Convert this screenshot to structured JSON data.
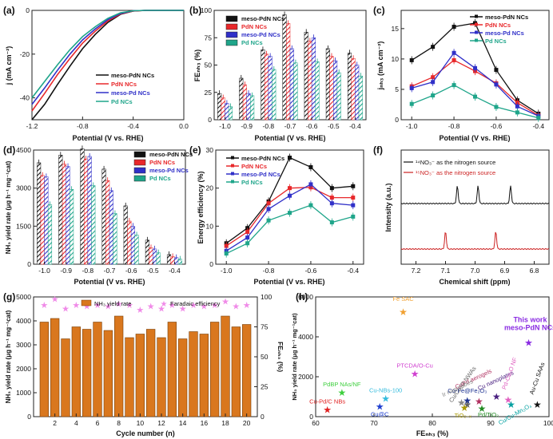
{
  "colors": {
    "meso_PdN": "#111111",
    "PdN": "#e8282b",
    "meso_Pd": "#3030c8",
    "Pd": "#1fa58a",
    "yield_bar": "#d9771e",
    "fe_star": "#f08ae8"
  },
  "chart_data": [
    {
      "panel": "(a)",
      "type": "line",
      "xlabel": "Potential (V vs. RHE)",
      "ylabel": "j (mA cm⁻²)",
      "xlim": [
        -1.2,
        0.0
      ],
      "ylim": [
        -50,
        0
      ],
      "xticks": [
        -1.2,
        -0.8,
        -0.4,
        0.0
      ],
      "xtick_labels": [
        "-1.2",
        "-0.8",
        "-0.4",
        "0.0"
      ],
      "yticks": [
        -40,
        -20,
        0
      ],
      "ytick_labels": [
        "-40",
        "-20",
        "0"
      ],
      "legend": "bottom-left",
      "series": [
        {
          "name": "meso-PdN NCs",
          "color": "#111111",
          "points": [
            [
              -1.2,
              -52
            ],
            [
              -1.1,
              -43
            ],
            [
              -1.0,
              -34
            ],
            [
              -0.9,
              -25.5
            ],
            [
              -0.8,
              -17.5
            ],
            [
              -0.7,
              -11
            ],
            [
              -0.6,
              -5.5
            ],
            [
              -0.5,
              -1.8
            ],
            [
              -0.4,
              -0.3
            ],
            [
              -0.3,
              0
            ],
            [
              0.0,
              0
            ]
          ]
        },
        {
          "name": "PdN NCs",
          "color": "#e8282b",
          "points": [
            [
              -1.2,
              -46
            ],
            [
              -1.1,
              -38
            ],
            [
              -1.0,
              -29.5
            ],
            [
              -0.9,
              -22
            ],
            [
              -0.8,
              -15
            ],
            [
              -0.7,
              -9.5
            ],
            [
              -0.6,
              -4.8
            ],
            [
              -0.5,
              -1.6
            ],
            [
              -0.4,
              -0.3
            ],
            [
              -0.3,
              0
            ],
            [
              0.0,
              0
            ]
          ]
        },
        {
          "name": "meso-Pd NCs",
          "color": "#3030c8",
          "points": [
            [
              -1.2,
              -43
            ],
            [
              -1.1,
              -35.5
            ],
            [
              -1.0,
              -27.5
            ],
            [
              -0.9,
              -20
            ],
            [
              -0.8,
              -13.5
            ],
            [
              -0.7,
              -8.5
            ],
            [
              -0.6,
              -4.2
            ],
            [
              -0.5,
              -1.4
            ],
            [
              -0.4,
              -0.2
            ],
            [
              -0.3,
              0
            ],
            [
              0.0,
              0
            ]
          ]
        },
        {
          "name": "Pd NCs",
          "color": "#1fa58a",
          "points": [
            [
              -1.2,
              -40
            ],
            [
              -1.1,
              -32.5
            ],
            [
              -1.0,
              -25
            ],
            [
              -0.9,
              -18
            ],
            [
              -0.8,
              -12
            ],
            [
              -0.7,
              -7.5
            ],
            [
              -0.6,
              -3.6
            ],
            [
              -0.5,
              -1.1
            ],
            [
              -0.4,
              -0.2
            ],
            [
              -0.3,
              0
            ],
            [
              0.0,
              0
            ]
          ]
        }
      ]
    },
    {
      "panel": "(b)",
      "type": "bar",
      "ylabel": "FEₙₕ₃ (%)",
      "xlabel": "Potential (V vs. RHE)",
      "categories": [
        "-1.0",
        "-0.9",
        "-0.8",
        "-0.7",
        "-0.6",
        "-0.5",
        "-0.4"
      ],
      "ylim": [
        0,
        100
      ],
      "yticks": [
        0,
        25,
        50,
        75,
        100
      ],
      "ytick_labels": [
        "0",
        "25",
        "50",
        "75",
        "100"
      ],
      "legend": "top-left",
      "series": [
        {
          "name": "meso-PdN NCs",
          "color": "#111111",
          "values": [
            24,
            38,
            64,
            96,
            80,
            65,
            61
          ]
        },
        {
          "name": "PdN NCs",
          "color": "#e8282b",
          "values": [
            20,
            32,
            60,
            88,
            72,
            58,
            56
          ]
        },
        {
          "name": "meso-Pd NCs",
          "color": "#3030c8",
          "values": [
            15,
            24,
            58,
            65,
            75,
            54,
            50
          ]
        },
        {
          "name": "Pd NCs",
          "color": "#1fa58a",
          "values": [
            12,
            22,
            46,
            52,
            53,
            43,
            40
          ]
        }
      ]
    },
    {
      "panel": "(c)",
      "type": "line",
      "ylabel": "jₙₕ₃ (mA cm⁻²)",
      "xlabel": "Potential (V vs. RHE)",
      "xlim": [
        -1.05,
        -0.35
      ],
      "ylim": [
        0,
        18
      ],
      "xticks": [
        -1.0,
        -0.8,
        -0.6,
        -0.4
      ],
      "xtick_labels": [
        "-1.0",
        "-0.8",
        "-0.6",
        "-0.4"
      ],
      "yticks": [
        0,
        5,
        10,
        15
      ],
      "ytick_labels": [
        "0",
        "5",
        "10",
        "15"
      ],
      "legend": "top-right",
      "x": [
        -1.0,
        -0.9,
        -0.8,
        -0.7,
        -0.6,
        -0.5,
        -0.4
      ],
      "series": [
        {
          "name": "meso-PdN NCs",
          "color": "#111111",
          "values": [
            9.8,
            12.0,
            15.3,
            15.9,
            8.2,
            3.2,
            1.0
          ]
        },
        {
          "name": "PdN NCs",
          "color": "#e8282b",
          "values": [
            5.5,
            7.0,
            9.8,
            8.0,
            6.0,
            2.8,
            0.7
          ]
        },
        {
          "name": "meso-Pd NCs",
          "color": "#3030c8",
          "values": [
            5.2,
            6.2,
            11.0,
            8.5,
            5.8,
            2.2,
            0.6
          ]
        },
        {
          "name": "Pd NCs",
          "color": "#1fa58a",
          "values": [
            2.6,
            4.0,
            5.7,
            3.8,
            2.1,
            1.2,
            0.3
          ]
        }
      ]
    },
    {
      "panel": "(d)",
      "type": "bar",
      "ylabel": "NH₃ yield rate (μg h⁻¹ mg⁻¹cat)",
      "xlabel": "Potential (V vs. RHE)",
      "categories": [
        "-1.0",
        "-0.9",
        "-0.8",
        "-0.7",
        "-0.6",
        "-0.5",
        "-0.4"
      ],
      "ylim": [
        0,
        4500
      ],
      "yticks": [
        0,
        1500,
        3000,
        4500
      ],
      "ytick_labels": [
        "0",
        "1500",
        "3000",
        "4500"
      ],
      "legend": "top-right",
      "series": [
        {
          "name": "meso-PdN NCs",
          "color": "#111111",
          "values": [
            4000,
            4300,
            4550,
            3750,
            2300,
            950,
            380
          ]
        },
        {
          "name": "PdN NCs",
          "color": "#e8282b",
          "values": [
            3500,
            3950,
            4150,
            3300,
            1700,
            650,
            300
          ]
        },
        {
          "name": "meso-Pd NCs",
          "color": "#3030c8",
          "values": [
            3450,
            3850,
            4250,
            2900,
            1500,
            600,
            260
          ]
        },
        {
          "name": "Pd NCs",
          "color": "#1fa58a",
          "values": [
            2350,
            2950,
            3100,
            2000,
            1150,
            450,
            200
          ]
        }
      ]
    },
    {
      "panel": "(e)",
      "type": "line",
      "ylabel": "Energy efficiency (%)",
      "xlabel": "Potential (V vs. RHE)",
      "xlim": [
        -1.05,
        -0.35
      ],
      "ylim": [
        0,
        30
      ],
      "xticks": [
        -1.0,
        -0.8,
        -0.6,
        -0.4
      ],
      "xtick_labels": [
        "-1.0",
        "-0.8",
        "-0.6",
        "-0.4"
      ],
      "yticks": [
        0,
        10,
        20,
        30
      ],
      "ytick_labels": [
        "0",
        "10",
        "20",
        "30"
      ],
      "legend": "top-left",
      "x": [
        -1.0,
        -0.9,
        -0.8,
        -0.7,
        -0.6,
        -0.5,
        -0.4
      ],
      "series": [
        {
          "name": "meso-PdN NCs",
          "color": "#111111",
          "values": [
            5.5,
            9.5,
            16.5,
            28.0,
            25.5,
            20.0,
            20.5
          ]
        },
        {
          "name": "PdN NCs",
          "color": "#e8282b",
          "values": [
            4.8,
            8.5,
            16.0,
            20.0,
            20.2,
            17.5,
            17.5
          ]
        },
        {
          "name": "meso-Pd NCs",
          "color": "#3030c8",
          "values": [
            3.5,
            7.0,
            14.5,
            18.0,
            21.0,
            16.0,
            15.5
          ]
        },
        {
          "name": "Pd NCs",
          "color": "#1fa58a",
          "values": [
            2.8,
            5.5,
            11.5,
            13.5,
            15.5,
            11.0,
            12.5
          ]
        }
      ]
    },
    {
      "panel": "(f)",
      "type": "line",
      "ylabel": "Intensity (a.u.)",
      "xlabel": "Chemical shift (ppm)",
      "xlim": [
        7.25,
        6.75
      ],
      "xreversed": true,
      "xticks": [
        7.2,
        7.1,
        7.0,
        6.9,
        6.8
      ],
      "xtick_labels": [
        "7.2",
        "7.1",
        "7.0",
        "6.9",
        "6.8"
      ],
      "series": [
        {
          "name": "¹⁴NO₃⁻ as the nitrogen source",
          "color": "#111111",
          "peaks": [
            7.06,
            6.99,
            6.88
          ]
        },
        {
          "name": "¹⁵NO₃⁻ as the nitrogen source",
          "color": "#cc2222",
          "peaks": [
            7.1,
            6.93
          ]
        }
      ]
    },
    {
      "panel": "(g)",
      "type": "bar",
      "ylabel": "NH₃ yield rate (μg h⁻¹ mg⁻¹cat)",
      "y2label": "FEₙₕ₃ (%)",
      "xlabel": "Cycle number (n)",
      "x": [
        1,
        2,
        3,
        4,
        5,
        6,
        7,
        8,
        9,
        10,
        11,
        12,
        13,
        14,
        15,
        16,
        17,
        18,
        19,
        20
      ],
      "xticks": [
        2,
        4,
        6,
        8,
        10,
        12,
        14,
        16,
        18,
        20
      ],
      "xtick_labels": [
        "2",
        "4",
        "6",
        "8",
        "10",
        "12",
        "14",
        "16",
        "18",
        "20"
      ],
      "ylim": [
        0,
        5000
      ],
      "yticks": [
        0,
        1000,
        2000,
        3000,
        4000,
        5000
      ],
      "ytick_labels": [
        "0",
        "1000",
        "2000",
        "3000",
        "4000",
        "5000"
      ],
      "y2lim": [
        0,
        100
      ],
      "y2ticks": [
        0,
        25,
        50,
        75,
        100
      ],
      "y2tick_labels": [
        "0",
        "25",
        "50",
        "75",
        "100"
      ],
      "legend": "top",
      "series": [
        {
          "name": "NH₃ yield rate",
          "color": "#d9771e",
          "values": [
            3950,
            4100,
            3250,
            3750,
            3650,
            3950,
            3600,
            4200,
            3300,
            3450,
            3650,
            3300,
            3950,
            3250,
            3550,
            3450,
            3950,
            4200,
            3750,
            3850
          ]
        },
        {
          "name": "Faradaic efficiency",
          "color": "#f08ae8",
          "values": [
            93,
            98,
            90,
            93,
            92,
            93,
            92,
            94,
            93,
            89,
            92,
            90,
            93,
            90,
            93,
            92,
            93,
            96,
            92,
            93
          ]
        }
      ]
    },
    {
      "panel": "(h)",
      "type": "scatter",
      "ylabel": "NH₃ yield rate (μg h⁻¹ mg⁻¹cat)",
      "xlabel": "FEₙₕ₃ (%)",
      "xlim": [
        60,
        100
      ],
      "ylim": [
        0,
        6000
      ],
      "xticks": [
        60,
        70,
        80,
        90,
        100
      ],
      "xtick_labels": [
        "60",
        "70",
        "80",
        "90",
        "100"
      ],
      "yticks": [
        0,
        2000,
        4000,
        6000
      ],
      "ytick_labels": [
        "0",
        "2000",
        "4000",
        "6000"
      ],
      "points": [
        {
          "label": "Fe SAC",
          "x": 75,
          "y": 5250,
          "color": "#f0a030",
          "tdx": 0,
          "tdy": -14,
          "rot": 0
        },
        {
          "label": "This work\nmeso-PdN NCs",
          "x": 96.5,
          "y": 3700,
          "color": "#8a2be2",
          "tdx": 2,
          "tdy": -26,
          "rot": 0
        },
        {
          "label": "PTCDA/O-Cu",
          "x": 77,
          "y": 2150,
          "color": "#d040d0",
          "tdx": 0,
          "tdy": -8,
          "rot": 0
        },
        {
          "label": "PdBP NAs/NF",
          "x": 64.5,
          "y": 1200,
          "color": "#3ecf3e",
          "tdx": 0,
          "tdy": -8,
          "rot": 0
        },
        {
          "label": "Cu-NBs-100",
          "x": 72,
          "y": 900,
          "color": "#33bbdd",
          "tdx": 0,
          "tdy": -8,
          "rot": 0
        },
        {
          "label": "Cu-Pd/C NBs",
          "x": 62,
          "y": 350,
          "color": "#e02020",
          "tdx": 0,
          "tdy": -8,
          "rot": 0
        },
        {
          "label": "Cu@C",
          "x": 71,
          "y": 500,
          "color": "#2040d0",
          "tdx": 0,
          "tdy": 12,
          "rot": 0
        },
        {
          "label": "Co-Fe@Fe₂O₃",
          "x": 86,
          "y": 800,
          "color": "#1a3090",
          "tdx": 0,
          "tdy": -10,
          "rot": 0
        },
        {
          "label": "CuPd aerogels",
          "x": 88,
          "y": 760,
          "color": "#b03060",
          "tdx": -6,
          "tdy": -26,
          "rot": -25
        },
        {
          "label": "Cu/Cu₂O NWAs",
          "x": 86,
          "y": 600,
          "color": "#666666",
          "tdx": -4,
          "tdy": -24,
          "rot": -55
        },
        {
          "label": "Cu nanoplates",
          "x": 91,
          "y": 1000,
          "color": "#4a2080",
          "tdx": 0,
          "tdy": -18,
          "rot": -25
        },
        {
          "label": "Ir nanotubes",
          "x": 85,
          "y": 700,
          "color": "#888888",
          "tdx": -4,
          "tdy": -16,
          "rot": -25
        },
        {
          "label": "TiO₂₋ₓ",
          "x": 85.5,
          "y": 450,
          "color": "#aa9900",
          "tdx": -2,
          "tdy": 12,
          "rot": 0
        },
        {
          "label": "Pd/TiO₂",
          "x": 88.5,
          "y": 400,
          "color": "#228b22",
          "tdx": 8,
          "tdy": 10,
          "rot": 0
        },
        {
          "label": "Cu/Cu-Mn₃O₄",
          "x": 93.5,
          "y": 600,
          "color": "#00a0a0",
          "tdx": 6,
          "tdy": 14,
          "rot": -30
        },
        {
          "label": "Pd-Cu₂O NF",
          "x": 93,
          "y": 850,
          "color": "#e060c0",
          "tdx": 4,
          "tdy": -32,
          "rot": -70
        },
        {
          "label": "Au-Cu SAAs",
          "x": 98,
          "y": 600,
          "color": "#111111",
          "tdx": 2,
          "tdy": -32,
          "rot": -70
        }
      ]
    }
  ]
}
